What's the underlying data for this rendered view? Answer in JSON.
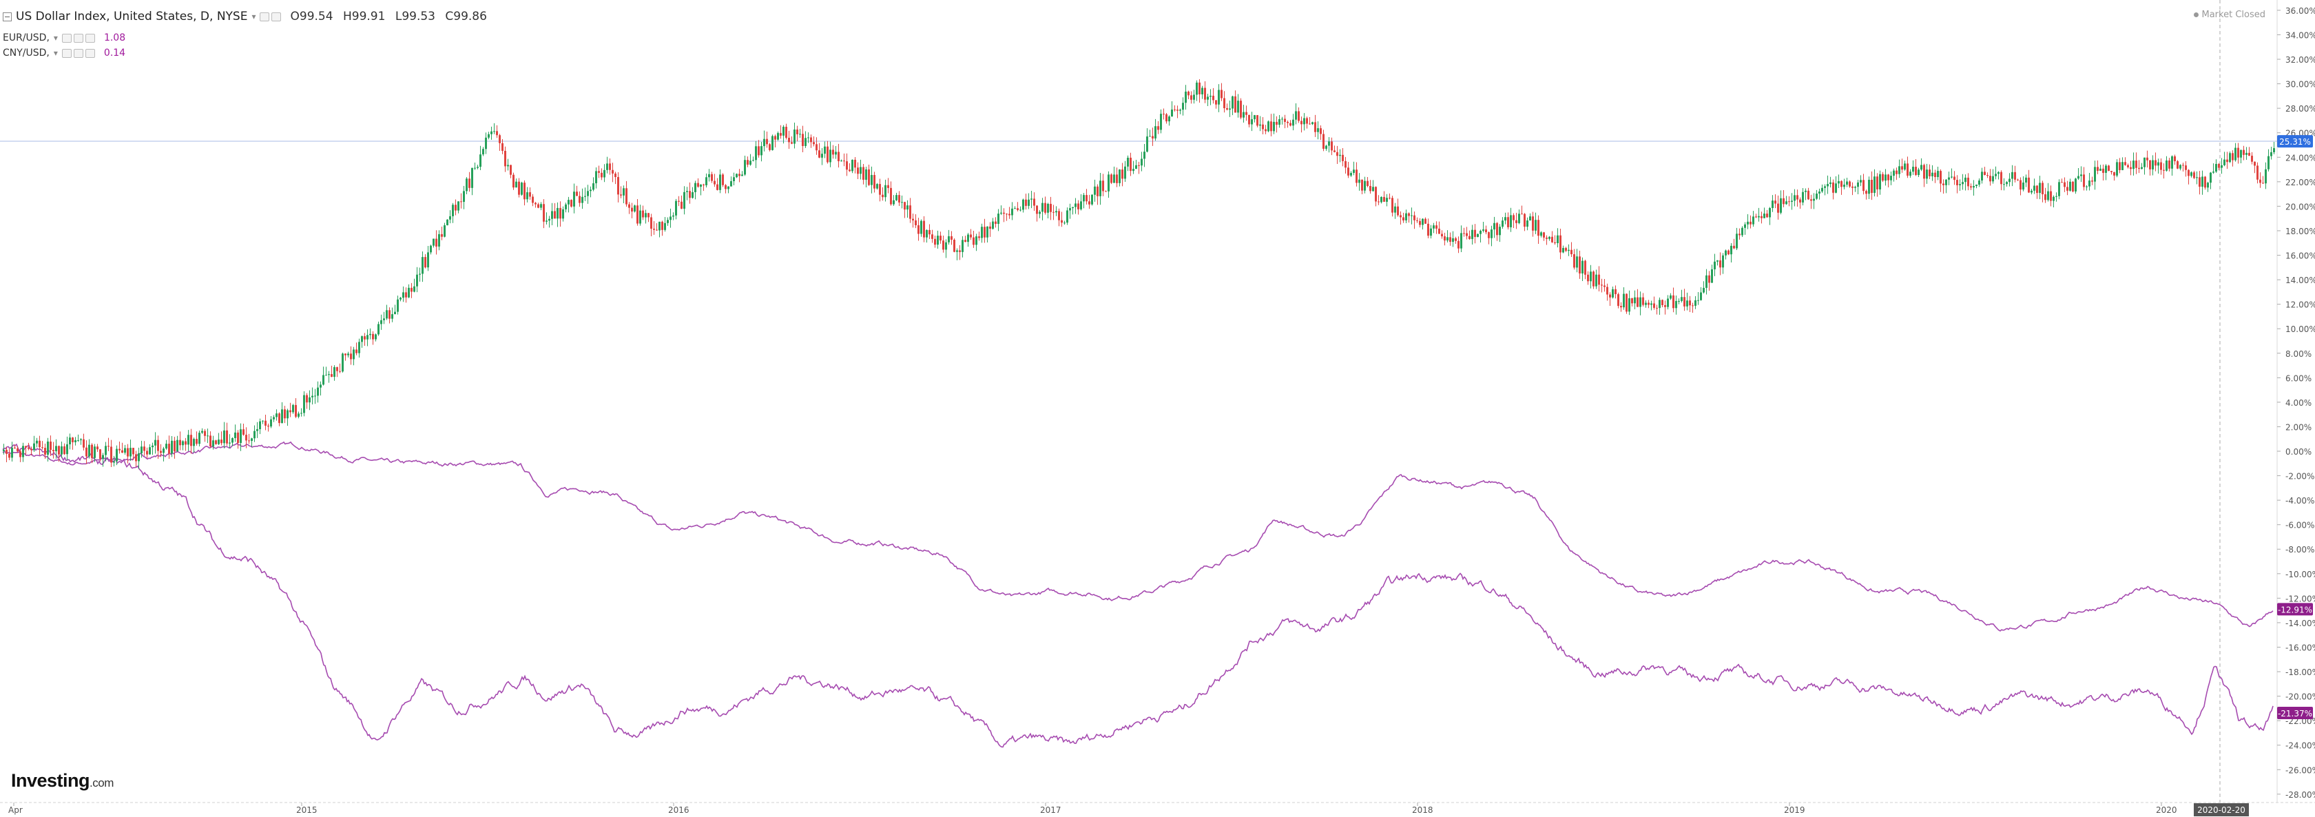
{
  "legend": {
    "main": {
      "title": "US Dollar Index, United States, D, NYSE",
      "open_label": "O",
      "open": "99.54",
      "high_label": "H",
      "high": "99.91",
      "low_label": "L",
      "low": "99.53",
      "close_label": "C",
      "close": "99.86"
    },
    "eur": {
      "title": "EUR/USD,",
      "value": "1.08"
    },
    "cny": {
      "title": "CNY/USD,",
      "value": "0.14"
    }
  },
  "market_status": "Market Closed",
  "logo": {
    "brand": "Investing",
    "suffix": ".com"
  },
  "colors": {
    "up": "#26a05a",
    "down": "#e0433f",
    "line": "#a64bb0",
    "badge": "#8e1e8a",
    "badge_blue": "#2f6fe0"
  },
  "chart_data": {
    "type": "line",
    "title": "US Dollar Index, United States, D, NYSE",
    "y_axis": {
      "unit": "%",
      "min": -28,
      "max": 36,
      "step": 2,
      "side": "right"
    },
    "x_axis": {
      "labels": [
        "Apr",
        "2015",
        "2016",
        "2017",
        "2018",
        "2019",
        "2020"
      ],
      "crosshair_label": "2020-02-20"
    },
    "crosshair_y": 25.31,
    "series": [
      {
        "name": "US Dollar Index",
        "style": "candlestick",
        "last_label": "25.31%",
        "points": [
          [
            0,
            0
          ],
          [
            0.03,
            0.5
          ],
          [
            0.05,
            -0.5
          ],
          [
            0.08,
            0.8
          ],
          [
            0.11,
            1.5
          ],
          [
            0.13,
            3.5
          ],
          [
            0.145,
            6.5
          ],
          [
            0.155,
            8.5
          ],
          [
            0.175,
            12
          ],
          [
            0.19,
            17
          ],
          [
            0.205,
            22
          ],
          [
            0.215,
            26
          ],
          [
            0.225,
            22
          ],
          [
            0.24,
            19
          ],
          [
            0.255,
            21
          ],
          [
            0.265,
            23
          ],
          [
            0.28,
            19
          ],
          [
            0.29,
            18.5
          ],
          [
            0.305,
            22
          ],
          [
            0.32,
            22
          ],
          [
            0.335,
            25
          ],
          [
            0.345,
            26
          ],
          [
            0.36,
            24.5
          ],
          [
            0.375,
            23
          ],
          [
            0.39,
            21
          ],
          [
            0.405,
            18
          ],
          [
            0.42,
            16.5
          ],
          [
            0.435,
            18.5
          ],
          [
            0.45,
            20.5
          ],
          [
            0.465,
            19
          ],
          [
            0.48,
            21
          ],
          [
            0.5,
            24
          ],
          [
            0.51,
            27
          ],
          [
            0.525,
            29.5
          ],
          [
            0.54,
            28.5
          ],
          [
            0.555,
            26.5
          ],
          [
            0.57,
            27.5
          ],
          [
            0.585,
            24.5
          ],
          [
            0.6,
            21.5
          ],
          [
            0.62,
            19
          ],
          [
            0.64,
            17
          ],
          [
            0.655,
            18
          ],
          [
            0.67,
            19
          ],
          [
            0.685,
            17
          ],
          [
            0.7,
            14
          ],
          [
            0.715,
            12
          ],
          [
            0.73,
            12
          ],
          [
            0.745,
            12.5
          ],
          [
            0.76,
            16.5
          ],
          [
            0.775,
            19.5
          ],
          [
            0.79,
            20.5
          ],
          [
            0.805,
            21.5
          ],
          [
            0.82,
            21.5
          ],
          [
            0.84,
            23
          ],
          [
            0.86,
            22
          ],
          [
            0.88,
            22.5
          ],
          [
            0.9,
            21
          ],
          [
            0.92,
            22.5
          ],
          [
            0.94,
            23.5
          ],
          [
            0.955,
            23.5
          ],
          [
            0.97,
            22
          ],
          [
            0.985,
            24.5
          ],
          [
            0.995,
            22
          ],
          [
            1.0,
            25.3
          ]
        ]
      },
      {
        "name": "EUR/USD",
        "style": "line",
        "last_label": "-12.91%",
        "points": [
          [
            0,
            0
          ],
          [
            0.03,
            -1
          ],
          [
            0.06,
            -0.5
          ],
          [
            0.1,
            0.3
          ],
          [
            0.13,
            0.5
          ],
          [
            0.15,
            -0.5
          ],
          [
            0.17,
            -1
          ],
          [
            0.19,
            -1
          ],
          [
            0.21,
            -1
          ],
          [
            0.228,
            -1.2
          ],
          [
            0.24,
            -3.5
          ],
          [
            0.255,
            -3
          ],
          [
            0.27,
            -3.5
          ],
          [
            0.28,
            -5
          ],
          [
            0.295,
            -6.5
          ],
          [
            0.31,
            -6
          ],
          [
            0.325,
            -5
          ],
          [
            0.34,
            -5.5
          ],
          [
            0.355,
            -6.5
          ],
          [
            0.37,
            -7.5
          ],
          [
            0.385,
            -7.5
          ],
          [
            0.4,
            -8
          ],
          [
            0.415,
            -8.5
          ],
          [
            0.43,
            -11
          ],
          [
            0.445,
            -12
          ],
          [
            0.46,
            -11.5
          ],
          [
            0.475,
            -11.5
          ],
          [
            0.49,
            -12
          ],
          [
            0.505,
            -11.5
          ],
          [
            0.52,
            -10.5
          ],
          [
            0.535,
            -9
          ],
          [
            0.55,
            -8
          ],
          [
            0.56,
            -5.5
          ],
          [
            0.575,
            -6.5
          ],
          [
            0.59,
            -7
          ],
          [
            0.6,
            -5.5
          ],
          [
            0.615,
            -2
          ],
          [
            0.63,
            -2.5
          ],
          [
            0.645,
            -3
          ],
          [
            0.66,
            -2.5
          ],
          [
            0.675,
            -4
          ],
          [
            0.69,
            -8
          ],
          [
            0.705,
            -10
          ],
          [
            0.72,
            -11.5
          ],
          [
            0.735,
            -12
          ],
          [
            0.75,
            -11
          ],
          [
            0.765,
            -10
          ],
          [
            0.78,
            -9
          ],
          [
            0.795,
            -9
          ],
          [
            0.81,
            -10
          ],
          [
            0.825,
            -11.5
          ],
          [
            0.845,
            -11.5
          ],
          [
            0.86,
            -12.5
          ],
          [
            0.88,
            -14.5
          ],
          [
            0.9,
            -14
          ],
          [
            0.915,
            -13
          ],
          [
            0.93,
            -12.5
          ],
          [
            0.945,
            -11
          ],
          [
            0.96,
            -12
          ],
          [
            0.975,
            -12.5
          ],
          [
            0.99,
            -14.5
          ],
          [
            1.0,
            -12.9
          ]
        ]
      },
      {
        "name": "CNY/USD",
        "style": "line",
        "last_label": "-21.37%",
        "points": [
          [
            0,
            0
          ],
          [
            0.03,
            -0.5
          ],
          [
            0.06,
            -1.5
          ],
          [
            0.08,
            -4
          ],
          [
            0.095,
            -8
          ],
          [
            0.11,
            -9
          ],
          [
            0.125,
            -12
          ],
          [
            0.135,
            -15
          ],
          [
            0.145,
            -19
          ],
          [
            0.155,
            -21
          ],
          [
            0.165,
            -24
          ],
          [
            0.175,
            -21
          ],
          [
            0.185,
            -19
          ],
          [
            0.2,
            -21
          ],
          [
            0.215,
            -20
          ],
          [
            0.23,
            -18.5
          ],
          [
            0.24,
            -20
          ],
          [
            0.255,
            -19
          ],
          [
            0.27,
            -23
          ],
          [
            0.285,
            -23
          ],
          [
            0.3,
            -21
          ],
          [
            0.32,
            -21
          ],
          [
            0.335,
            -19.5
          ],
          [
            0.35,
            -18.5
          ],
          [
            0.365,
            -19
          ],
          [
            0.38,
            -20
          ],
          [
            0.395,
            -19.5
          ],
          [
            0.41,
            -20
          ],
          [
            0.425,
            -21.5
          ],
          [
            0.44,
            -24
          ],
          [
            0.455,
            -23.5
          ],
          [
            0.47,
            -24
          ],
          [
            0.485,
            -23
          ],
          [
            0.5,
            -22
          ],
          [
            0.52,
            -21
          ],
          [
            0.535,
            -18.5
          ],
          [
            0.55,
            -15.5
          ],
          [
            0.565,
            -14
          ],
          [
            0.58,
            -14.5
          ],
          [
            0.595,
            -13.5
          ],
          [
            0.61,
            -11
          ],
          [
            0.625,
            -10
          ],
          [
            0.64,
            -10.5
          ],
          [
            0.655,
            -11
          ],
          [
            0.67,
            -13
          ],
          [
            0.685,
            -16
          ],
          [
            0.7,
            -18
          ],
          [
            0.715,
            -18
          ],
          [
            0.73,
            -17.5
          ],
          [
            0.745,
            -18.5
          ],
          [
            0.76,
            -18
          ],
          [
            0.775,
            -18.5
          ],
          [
            0.79,
            -19
          ],
          [
            0.81,
            -19
          ],
          [
            0.83,
            -19.5
          ],
          [
            0.85,
            -20.5
          ],
          [
            0.87,
            -21
          ],
          [
            0.89,
            -20
          ],
          [
            0.91,
            -20.5
          ],
          [
            0.93,
            -20
          ],
          [
            0.945,
            -19.5
          ],
          [
            0.955,
            -21
          ],
          [
            0.965,
            -22.5
          ],
          [
            0.975,
            -17.5
          ],
          [
            0.985,
            -22
          ],
          [
            0.995,
            -23
          ],
          [
            1.0,
            -21.37
          ]
        ]
      }
    ]
  }
}
